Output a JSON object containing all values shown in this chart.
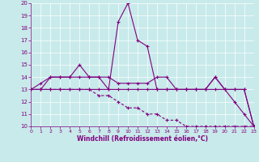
{
  "xlabel": "Windchill (Refroidissement éolien,°C)",
  "x": [
    0,
    1,
    2,
    3,
    4,
    5,
    6,
    7,
    8,
    9,
    10,
    11,
    12,
    13,
    14,
    15,
    16,
    17,
    18,
    19,
    20,
    21,
    22,
    23
  ],
  "line1": [
    13,
    13,
    14,
    14,
    14,
    15,
    14,
    14,
    13,
    18.5,
    20,
    17,
    16.5,
    13,
    13,
    13,
    13,
    13,
    13,
    14,
    13,
    12,
    11,
    10
  ],
  "line2": [
    13,
    13,
    13,
    13,
    13,
    13,
    13,
    13,
    13,
    13,
    13,
    13,
    13,
    13,
    13,
    13,
    13,
    13,
    13,
    13,
    13,
    13,
    13,
    10
  ],
  "line3": [
    13,
    13.5,
    14,
    14,
    14,
    14,
    14,
    14,
    14,
    13.5,
    13.5,
    13.5,
    13.5,
    14,
    14,
    13,
    13,
    13,
    13,
    14,
    13,
    13,
    13,
    10
  ],
  "line4": [
    13,
    13,
    13,
    13,
    13,
    13,
    13,
    12.5,
    12.5,
    12,
    11.5,
    11.5,
    11,
    11,
    10.5,
    10.5,
    10,
    10,
    10,
    10,
    10,
    10,
    10,
    10
  ],
  "color": "#800080",
  "bg_color": "#c8eaea",
  "ylim": [
    10,
    20
  ],
  "xlim": [
    0,
    23
  ],
  "yticks": [
    10,
    11,
    12,
    13,
    14,
    15,
    16,
    17,
    18,
    19,
    20
  ],
  "xticks": [
    0,
    1,
    2,
    3,
    4,
    5,
    6,
    7,
    8,
    9,
    10,
    11,
    12,
    13,
    14,
    15,
    16,
    17,
    18,
    19,
    20,
    21,
    22,
    23
  ]
}
